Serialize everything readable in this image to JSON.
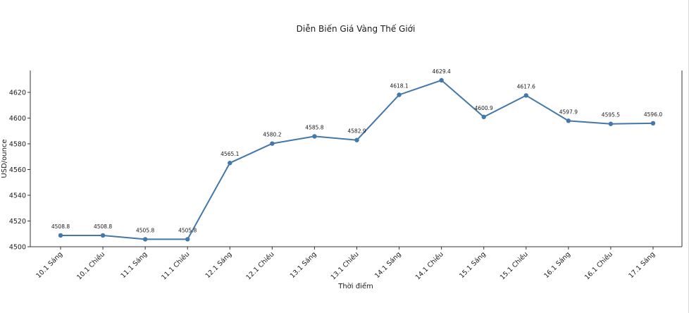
{
  "chart_data": {
    "type": "line",
    "title": "Diễn Biến Giá Vàng Thế Giới",
    "xlabel": "Thời điểm",
    "ylabel": "USD/ounce",
    "categories": [
      "10.1 Sáng",
      "10.1 Chiều",
      "11.1 Sáng",
      "11.1 Chiều",
      "12.1 Sáng",
      "12.1 Chiều",
      "13.1 Sáng",
      "13.1 Chiều",
      "14.1 Sáng",
      "14.1 Chiều",
      "15.1 Sáng",
      "15.1 Chiều",
      "16.1 Sáng",
      "16.1 Chiều",
      "17.1 Sáng"
    ],
    "series": [
      {
        "values": [
          4508.8,
          4508.8,
          4505.8,
          4505.8,
          4565.1,
          4580.2,
          4585.8,
          4582.9,
          4618.1,
          4629.4,
          4600.9,
          4617.6,
          4597.9,
          4595.5,
          4596.0
        ],
        "data_labels": [
          "4508.8",
          "4508.8",
          "4505.8",
          "4505.8",
          "4565.1",
          "4580.2",
          "4585.8",
          "4582.9",
          "4618.1",
          "4629.4",
          "4600.9",
          "4617.6",
          "4597.9",
          "4595.5",
          "4596.0"
        ],
        "color": "#4477aa"
      }
    ],
    "y_ticks": [
      4500,
      4520,
      4540,
      4560,
      4580,
      4600,
      4620
    ],
    "ylim": [
      4500,
      4637
    ],
    "grid": false,
    "legend": "none"
  }
}
